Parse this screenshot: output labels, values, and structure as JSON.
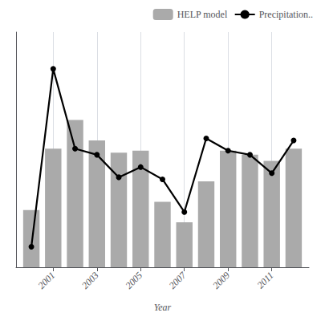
{
  "chart_data": {
    "type": "bar",
    "x": [
      2000,
      2001,
      2002,
      2003,
      2004,
      2005,
      2006,
      2007,
      2008,
      2009,
      2010,
      2011,
      2012
    ],
    "xlabel": "Year",
    "series": [
      {
        "name": "HELP model",
        "type": "bar",
        "color": "#aaaaaa",
        "values": [
          28,
          58,
          72,
          62,
          56,
          57,
          32,
          22,
          42,
          57,
          55,
          52,
          58
        ]
      },
      {
        "name": "Precipitation..",
        "type": "line",
        "color": "#000000",
        "marker": "circle",
        "line_style": "solid",
        "values": [
          10,
          97,
          58,
          55,
          44,
          49,
          43,
          27,
          63,
          57,
          55,
          46,
          62
        ]
      }
    ],
    "xlim": [
      1999.3,
      2012.7
    ],
    "xticks": [
      2001,
      2003,
      2005,
      2007,
      2009,
      2011
    ],
    "ylim": [
      0,
      115
    ],
    "grid": true,
    "tick_labels": "x",
    "legend": "upper right"
  }
}
